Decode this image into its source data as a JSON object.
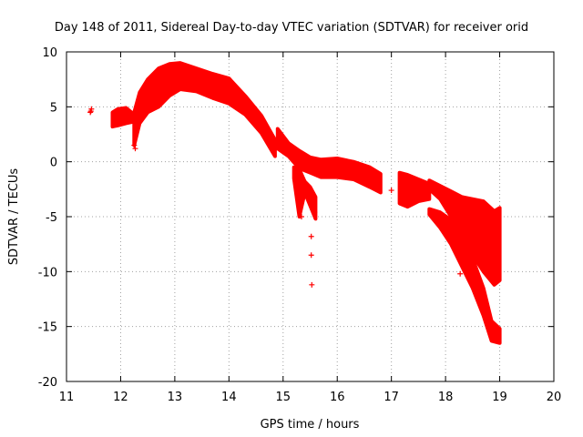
{
  "chart_data": {
    "type": "scatter",
    "title": "Day 148 of 2011, Sidereal Day-to-day VTEC variation (SDTVAR) for receiver orid",
    "xlabel": "GPS time / hours",
    "ylabel": "SDTVAR / TECUs",
    "xlim": [
      11,
      20
    ],
    "ylim": [
      -20,
      10
    ],
    "xticks": [
      "11",
      "12",
      "13",
      "14",
      "15",
      "16",
      "17",
      "18",
      "19",
      "20"
    ],
    "yticks": [
      "10",
      "5",
      "0",
      "-5",
      "-10",
      "-15",
      "-20"
    ],
    "grid": true,
    "series": [
      {
        "name": "SDTVAR",
        "color": "#ff0000",
        "marker": "plus",
        "bands": [
          {
            "x": [
              11.85,
              11.95,
              12.1,
              12.2
            ],
            "low": [
              3.2,
              3.3,
              3.5,
              3.6
            ],
            "high": [
              4.5,
              4.8,
              4.9,
              4.5
            ]
          },
          {
            "x": [
              12.25,
              12.35,
              12.5,
              12.7,
              12.9,
              13.1,
              13.4,
              13.7,
              14.0,
              14.3,
              14.6,
              14.85
            ],
            "low": [
              1.5,
              3.5,
              4.5,
              5.0,
              6.0,
              6.6,
              6.4,
              5.8,
              5.3,
              4.3,
              2.6,
              0.5
            ],
            "high": [
              4.5,
              6.3,
              7.5,
              8.5,
              8.9,
              9.0,
              8.5,
              8.0,
              7.6,
              6.0,
              4.2,
              2.0
            ]
          },
          {
            "x": [
              14.9,
              15.1,
              15.3,
              15.5,
              15.7,
              16.0,
              16.3,
              16.6,
              16.8
            ],
            "low": [
              1.2,
              0.5,
              -0.6,
              -1.0,
              -1.4,
              -1.4,
              -1.6,
              -2.3,
              -2.8
            ],
            "high": [
              3.0,
              1.7,
              1.0,
              0.4,
              0.2,
              0.3,
              0.0,
              -0.5,
              -1.1
            ]
          },
          {
            "x": [
              15.2,
              15.3,
              15.4,
              15.5,
              15.6
            ],
            "low": [
              -1.5,
              -5.0,
              -2.8,
              -4.0,
              -5.2
            ],
            "high": [
              -0.5,
              -0.7,
              -1.8,
              -2.3,
              -3.2
            ]
          },
          {
            "x": [
              17.15,
              17.3,
              17.5,
              17.7
            ],
            "low": [
              -3.8,
              -4.1,
              -3.6,
              -3.4
            ],
            "high": [
              -1.0,
              -1.2,
              -1.6,
              -2.0
            ]
          },
          {
            "x": [
              17.7,
              17.9,
              18.1,
              18.3,
              18.5,
              18.7,
              18.9,
              19.0
            ],
            "low": [
              -2.5,
              -3.4,
              -5.0,
              -6.5,
              -8.5,
              -10.0,
              -11.2,
              -10.8
            ],
            "high": [
              -1.7,
              -2.2,
              -2.7,
              -3.2,
              -3.4,
              -3.6,
              -4.5,
              -4.2
            ]
          },
          {
            "x": [
              17.7,
              17.9,
              18.1,
              18.3,
              18.5,
              18.7,
              18.85,
              19.0
            ],
            "low": [
              -4.8,
              -6.0,
              -7.5,
              -9.5,
              -11.5,
              -14.0,
              -16.3,
              -16.5
            ],
            "high": [
              -4.3,
              -4.6,
              -5.3,
              -6.8,
              -8.8,
              -11.5,
              -14.5,
              -15.2
            ]
          }
        ],
        "points": [
          {
            "x": 11.45,
            "y": 4.6
          },
          {
            "x": 11.46,
            "y": 4.8
          },
          {
            "x": 11.44,
            "y": 4.5
          },
          {
            "x": 12.25,
            "y": 1.5
          },
          {
            "x": 12.27,
            "y": 1.2
          },
          {
            "x": 15.52,
            "y": -6.8
          },
          {
            "x": 15.52,
            "y": -8.5
          },
          {
            "x": 15.53,
            "y": -11.2
          },
          {
            "x": 15.58,
            "y": -4.6
          },
          {
            "x": 15.34,
            "y": -5.0
          },
          {
            "x": 18.27,
            "y": -10.2
          },
          {
            "x": 17.0,
            "y": -2.6
          },
          {
            "x": 18.72,
            "y": -4.2
          }
        ]
      }
    ]
  }
}
